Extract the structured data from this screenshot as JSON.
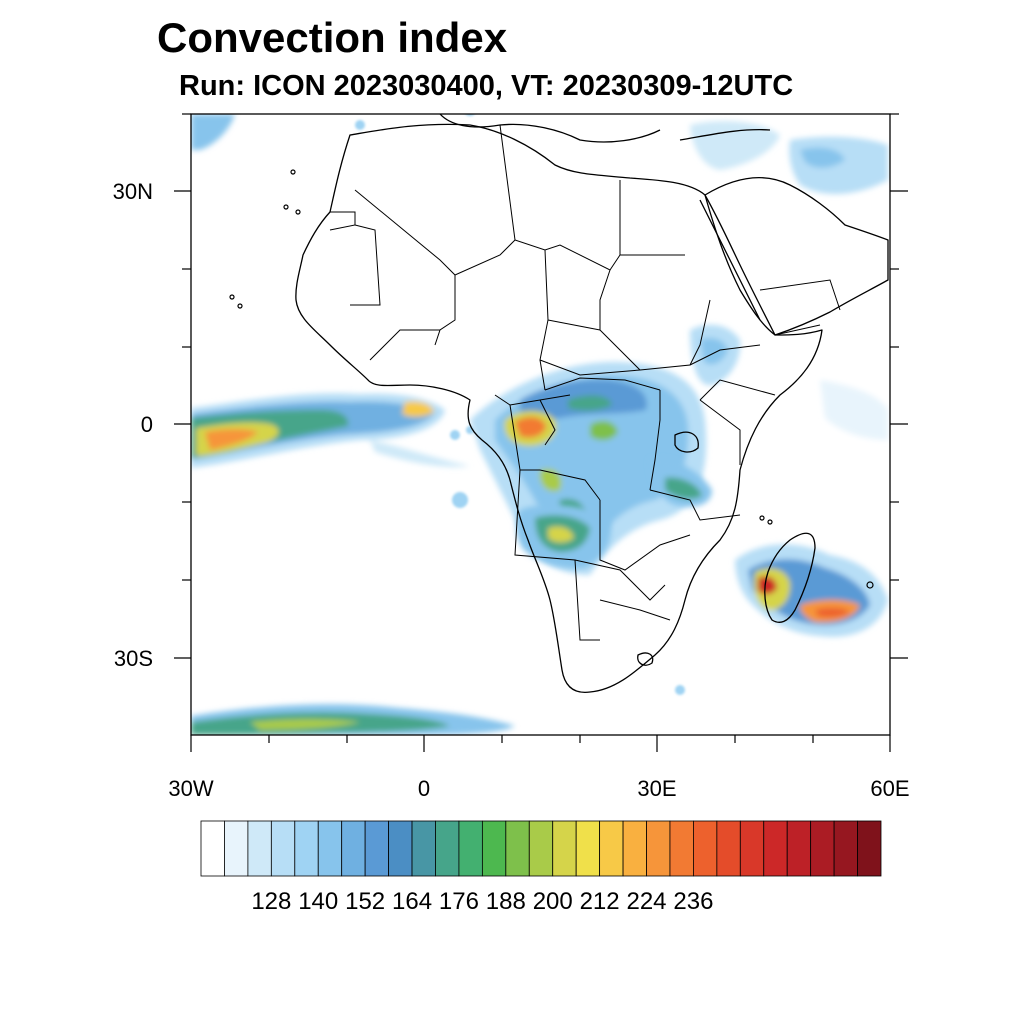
{
  "title": "Convection index",
  "subtitle": "Run: ICON 2023030400,  VT: 20230309-12UTC",
  "map": {
    "lon_range": [
      -30,
      60
    ],
    "lat_range": [
      -40,
      40
    ],
    "lat_labels": [
      "30N",
      "0",
      "30S"
    ],
    "lon_labels": [
      "30W",
      "0",
      "30E",
      "60E"
    ]
  },
  "colorbar": {
    "levels": [
      "128",
      "140",
      "152",
      "164",
      "176",
      "188",
      "200",
      "212",
      "224",
      "236"
    ],
    "colors": [
      "#ffffff",
      "#e8f4fc",
      "#cfe9f8",
      "#b7def6",
      "#9fd3f3",
      "#87c4ec",
      "#6fb0e1",
      "#5a9ad5",
      "#4b8ec4",
      "#4896a5",
      "#46a58a",
      "#43b070",
      "#4db84f",
      "#7ec04b",
      "#a9cb49",
      "#d5d44a",
      "#f0e04a",
      "#f7c947",
      "#f9b040",
      "#f6953a",
      "#f27a33",
      "#ed612d",
      "#e44c2a",
      "#d93829",
      "#cc2828",
      "#bd2127",
      "#ab1c24",
      "#961720",
      "#7f121b"
    ]
  }
}
